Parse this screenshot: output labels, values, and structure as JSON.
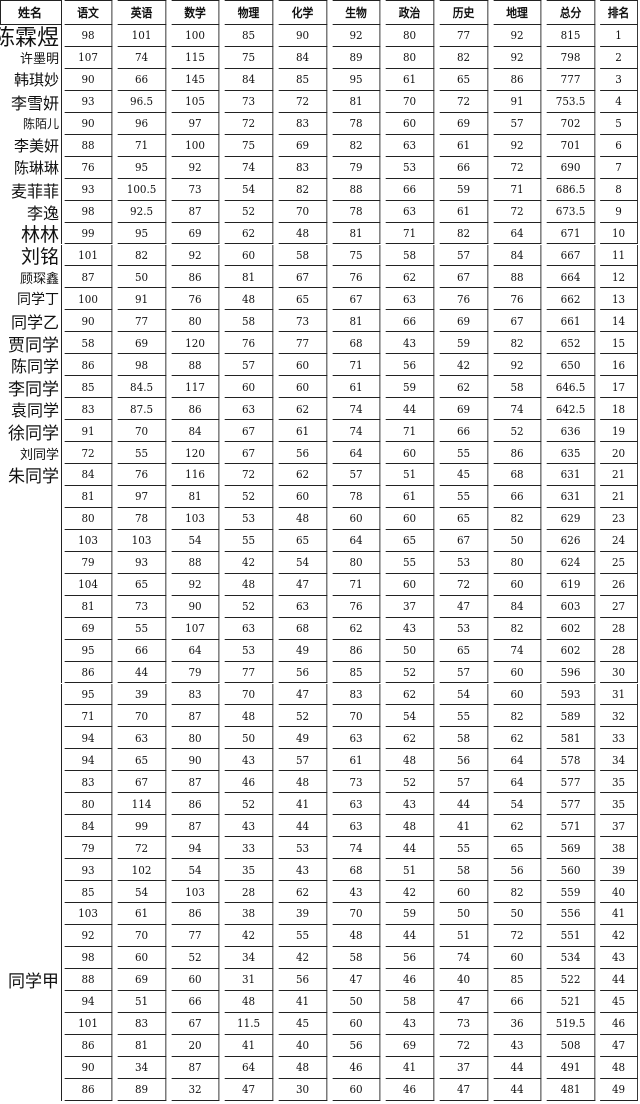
{
  "table": {
    "headers": [
      "姓名",
      "语文",
      "英语",
      "数学",
      "物理",
      "化学",
      "生物",
      "政治",
      "历史",
      "地理",
      "总分",
      "排名"
    ],
    "rows": [
      [
        "陈霖煜",
        "98",
        "101",
        "100",
        "85",
        "90",
        "92",
        "80",
        "77",
        "92",
        "815",
        "1"
      ],
      [
        "许墨明",
        "107",
        "74",
        "115",
        "75",
        "84",
        "89",
        "80",
        "82",
        "92",
        "798",
        "2"
      ],
      [
        "韩琪妙",
        "90",
        "66",
        "145",
        "84",
        "85",
        "95",
        "61",
        "65",
        "86",
        "777",
        "3"
      ],
      [
        "李雪妍",
        "93",
        "96.5",
        "105",
        "73",
        "72",
        "81",
        "70",
        "72",
        "91",
        "753.5",
        "4"
      ],
      [
        "陈陌儿",
        "90",
        "96",
        "97",
        "72",
        "83",
        "78",
        "60",
        "69",
        "57",
        "702",
        "5"
      ],
      [
        "李美妍",
        "88",
        "71",
        "100",
        "75",
        "69",
        "82",
        "63",
        "61",
        "92",
        "701",
        "6"
      ],
      [
        "陈琳琳",
        "76",
        "95",
        "92",
        "74",
        "83",
        "79",
        "53",
        "66",
        "72",
        "690",
        "7"
      ],
      [
        "麦菲菲",
        "93",
        "100.5",
        "73",
        "54",
        "82",
        "88",
        "66",
        "59",
        "71",
        "686.5",
        "8"
      ],
      [
        "李逸",
        "98",
        "92.5",
        "87",
        "52",
        "70",
        "78",
        "63",
        "61",
        "72",
        "673.5",
        "9"
      ],
      [
        "林林",
        "99",
        "95",
        "69",
        "62",
        "48",
        "81",
        "71",
        "82",
        "64",
        "671",
        "10"
      ],
      [
        "刘铭",
        "101",
        "82",
        "92",
        "60",
        "58",
        "75",
        "58",
        "57",
        "84",
        "667",
        "11"
      ],
      [
        "顾琛鑫",
        "87",
        "50",
        "86",
        "81",
        "67",
        "76",
        "62",
        "67",
        "88",
        "664",
        "12"
      ],
      [
        "同学丁",
        "100",
        "91",
        "76",
        "48",
        "65",
        "67",
        "63",
        "76",
        "76",
        "662",
        "13"
      ],
      [
        "同学乙",
        "90",
        "77",
        "80",
        "58",
        "73",
        "81",
        "66",
        "69",
        "67",
        "661",
        "14"
      ],
      [
        "贾同学",
        "58",
        "69",
        "120",
        "76",
        "77",
        "68",
        "43",
        "59",
        "82",
        "652",
        "15"
      ],
      [
        "陈同学",
        "86",
        "98",
        "88",
        "57",
        "60",
        "71",
        "56",
        "42",
        "92",
        "650",
        "16"
      ],
      [
        "李同学",
        "85",
        "84.5",
        "117",
        "60",
        "60",
        "61",
        "59",
        "62",
        "58",
        "646.5",
        "17"
      ],
      [
        "袁同学",
        "83",
        "87.5",
        "86",
        "63",
        "62",
        "74",
        "44",
        "69",
        "74",
        "642.5",
        "18"
      ],
      [
        "徐同学",
        "91",
        "70",
        "84",
        "67",
        "61",
        "74",
        "71",
        "66",
        "52",
        "636",
        "19"
      ],
      [
        "刘同学",
        "72",
        "55",
        "120",
        "67",
        "56",
        "64",
        "60",
        "55",
        "86",
        "635",
        "20"
      ],
      [
        "朱同学",
        "84",
        "76",
        "116",
        "72",
        "62",
        "57",
        "51",
        "45",
        "68",
        "631",
        "21"
      ],
      [
        "",
        "81",
        "97",
        "81",
        "52",
        "60",
        "78",
        "61",
        "55",
        "66",
        "631",
        "21"
      ],
      [
        "",
        "80",
        "78",
        "103",
        "53",
        "48",
        "60",
        "60",
        "65",
        "82",
        "629",
        "23"
      ],
      [
        "",
        "103",
        "103",
        "54",
        "55",
        "65",
        "64",
        "65",
        "67",
        "50",
        "626",
        "24"
      ],
      [
        "",
        "79",
        "93",
        "88",
        "42",
        "54",
        "80",
        "55",
        "53",
        "80",
        "624",
        "25"
      ],
      [
        "",
        "104",
        "65",
        "92",
        "48",
        "47",
        "71",
        "60",
        "72",
        "60",
        "619",
        "26"
      ],
      [
        "",
        "81",
        "73",
        "90",
        "52",
        "63",
        "76",
        "37",
        "47",
        "84",
        "603",
        "27"
      ],
      [
        "",
        "69",
        "55",
        "107",
        "63",
        "68",
        "62",
        "43",
        "53",
        "82",
        "602",
        "28"
      ],
      [
        "",
        "95",
        "66",
        "64",
        "53",
        "49",
        "86",
        "50",
        "65",
        "74",
        "602",
        "28"
      ],
      [
        "",
        "86",
        "44",
        "79",
        "77",
        "56",
        "85",
        "52",
        "57",
        "60",
        "596",
        "30"
      ],
      [
        "",
        "95",
        "39",
        "83",
        "70",
        "47",
        "83",
        "62",
        "54",
        "60",
        "593",
        "31"
      ],
      [
        "",
        "71",
        "70",
        "87",
        "48",
        "52",
        "70",
        "54",
        "55",
        "82",
        "589",
        "32"
      ],
      [
        "",
        "94",
        "63",
        "80",
        "50",
        "49",
        "63",
        "62",
        "58",
        "62",
        "581",
        "33"
      ],
      [
        "",
        "94",
        "65",
        "90",
        "43",
        "57",
        "61",
        "48",
        "56",
        "64",
        "578",
        "34"
      ],
      [
        "",
        "83",
        "67",
        "87",
        "46",
        "48",
        "73",
        "52",
        "57",
        "64",
        "577",
        "35"
      ],
      [
        "",
        "80",
        "114",
        "86",
        "52",
        "41",
        "63",
        "43",
        "44",
        "54",
        "577",
        "35"
      ],
      [
        "",
        "84",
        "99",
        "87",
        "43",
        "44",
        "63",
        "48",
        "41",
        "62",
        "571",
        "37"
      ],
      [
        "",
        "79",
        "72",
        "94",
        "33",
        "53",
        "74",
        "44",
        "55",
        "65",
        "569",
        "38"
      ],
      [
        "",
        "93",
        "102",
        "54",
        "35",
        "43",
        "68",
        "51",
        "58",
        "56",
        "560",
        "39"
      ],
      [
        "",
        "85",
        "54",
        "103",
        "28",
        "62",
        "43",
        "42",
        "60",
        "82",
        "559",
        "40"
      ],
      [
        "",
        "103",
        "61",
        "86",
        "38",
        "39",
        "70",
        "59",
        "50",
        "50",
        "556",
        "41"
      ],
      [
        "",
        "92",
        "70",
        "77",
        "42",
        "55",
        "48",
        "44",
        "51",
        "72",
        "551",
        "42"
      ],
      [
        "",
        "98",
        "60",
        "52",
        "34",
        "42",
        "58",
        "56",
        "74",
        "60",
        "534",
        "43"
      ],
      [
        "同学甲",
        "88",
        "69",
        "60",
        "31",
        "56",
        "47",
        "46",
        "40",
        "85",
        "522",
        "44"
      ],
      [
        "",
        "94",
        "51",
        "66",
        "48",
        "41",
        "50",
        "58",
        "47",
        "66",
        "521",
        "45"
      ],
      [
        "",
        "101",
        "83",
        "67",
        "11.5",
        "45",
        "60",
        "43",
        "73",
        "36",
        "519.5",
        "46"
      ],
      [
        "",
        "86",
        "81",
        "20",
        "41",
        "40",
        "56",
        "69",
        "72",
        "43",
        "508",
        "47"
      ],
      [
        "",
        "90",
        "34",
        "87",
        "64",
        "48",
        "46",
        "41",
        "37",
        "44",
        "491",
        "48"
      ],
      [
        "",
        "86",
        "89",
        "32",
        "47",
        "30",
        "60",
        "46",
        "47",
        "44",
        "481",
        "49"
      ]
    ]
  }
}
